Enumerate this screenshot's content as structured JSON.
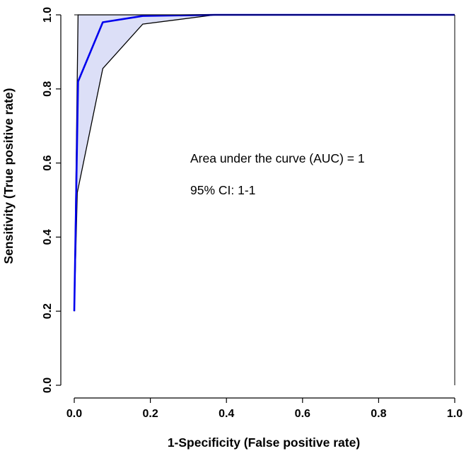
{
  "chart_data": {
    "type": "line",
    "title": "",
    "xlabel": "1-Specificity (False positive rate)",
    "ylabel": "Sensitivity (True positive rate)",
    "xlim": [
      0,
      1
    ],
    "ylim": [
      0,
      1
    ],
    "x_ticks": [
      "0.0",
      "0.2",
      "0.4",
      "0.6",
      "0.8",
      "1.0"
    ],
    "y_ticks": [
      "0.0",
      "0.2",
      "0.4",
      "0.6",
      "0.8",
      "1.0"
    ],
    "grid": false,
    "series": [
      {
        "role": "roc_curve",
        "x": [
          0.0,
          0.01,
          0.075,
          0.18,
          0.37,
          1.0
        ],
        "y": [
          0.2,
          0.82,
          0.98,
          0.997,
          1.0,
          1.0
        ],
        "color": "#0000ee"
      },
      {
        "role": "ci_upper",
        "x": [
          0.0,
          0.01,
          1.0
        ],
        "y": [
          0.2,
          1.0,
          1.0
        ],
        "color": "#000000"
      },
      {
        "role": "ci_lower",
        "x": [
          0.0,
          0.008,
          0.075,
          0.18,
          0.37,
          1.0
        ],
        "y": [
          0.2,
          0.52,
          0.855,
          0.975,
          1.0,
          1.0
        ],
        "color": "#000000"
      }
    ],
    "ci_fill_color": "#dcdff7",
    "annotations": [
      "Area under the curve (AUC) = 1",
      "95% CI: 1-1"
    ]
  }
}
